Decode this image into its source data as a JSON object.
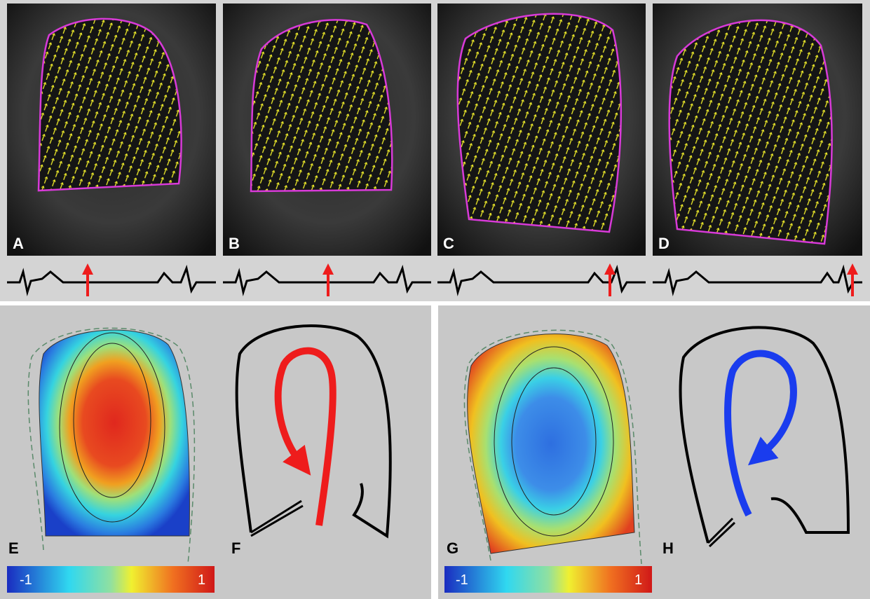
{
  "panels": {
    "A": "A",
    "B": "B",
    "C": "C",
    "D": "D",
    "E": "E",
    "F": "F",
    "G": "G",
    "H": "H"
  },
  "colorbars": [
    {
      "min": -1,
      "max": 1
    },
    {
      "min": -1,
      "max": 1
    }
  ]
}
